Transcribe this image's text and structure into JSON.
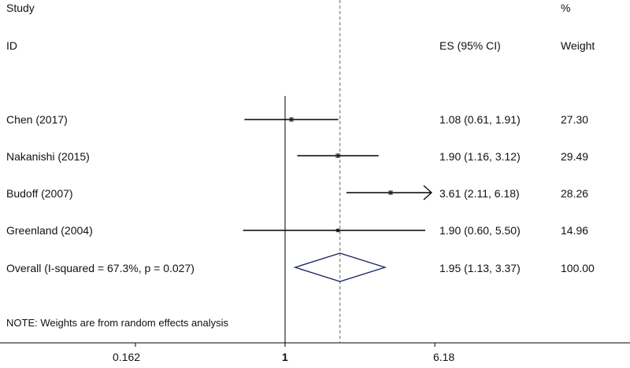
{
  "header": {
    "study_label": "Study",
    "id_label": "ID",
    "es_label": "ES (95% CI)",
    "pct_label": "%",
    "weight_label": "Weight"
  },
  "note": "NOTE: Weights are from random effects analysis",
  "chart_data": {
    "type": "forest",
    "x_scale": "log",
    "null_line": 1,
    "overall_line": 1.95,
    "x_ticks": [
      "0.162",
      "1",
      "6.18"
    ],
    "studies": [
      {
        "id": "Chen (2017)",
        "es": 1.08,
        "lo": 0.61,
        "hi": 1.91,
        "es_text": "1.08 (0.61, 1.91)",
        "weight": "27.30"
      },
      {
        "id": "Nakanishi (2015)",
        "es": 1.9,
        "lo": 1.16,
        "hi": 3.12,
        "es_text": "1.90 (1.16, 3.12)",
        "weight": "29.49"
      },
      {
        "id": "Budoff (2007)",
        "es": 3.61,
        "lo": 2.11,
        "hi": 6.18,
        "es_text": "3.61 (2.11, 6.18)",
        "weight": "28.26"
      },
      {
        "id": "Greenland (2004)",
        "es": 1.9,
        "lo": 0.6,
        "hi": 5.5,
        "es_text": "1.90 (0.60, 5.50)",
        "weight": "14.96"
      }
    ],
    "overall": {
      "id": "Overall  (I-squared = 67.3%, p = 0.027)",
      "es": 1.95,
      "lo": 1.13,
      "hi": 3.37,
      "es_text": "1.95 (1.13, 3.37)",
      "weight": "100.00"
    }
  }
}
